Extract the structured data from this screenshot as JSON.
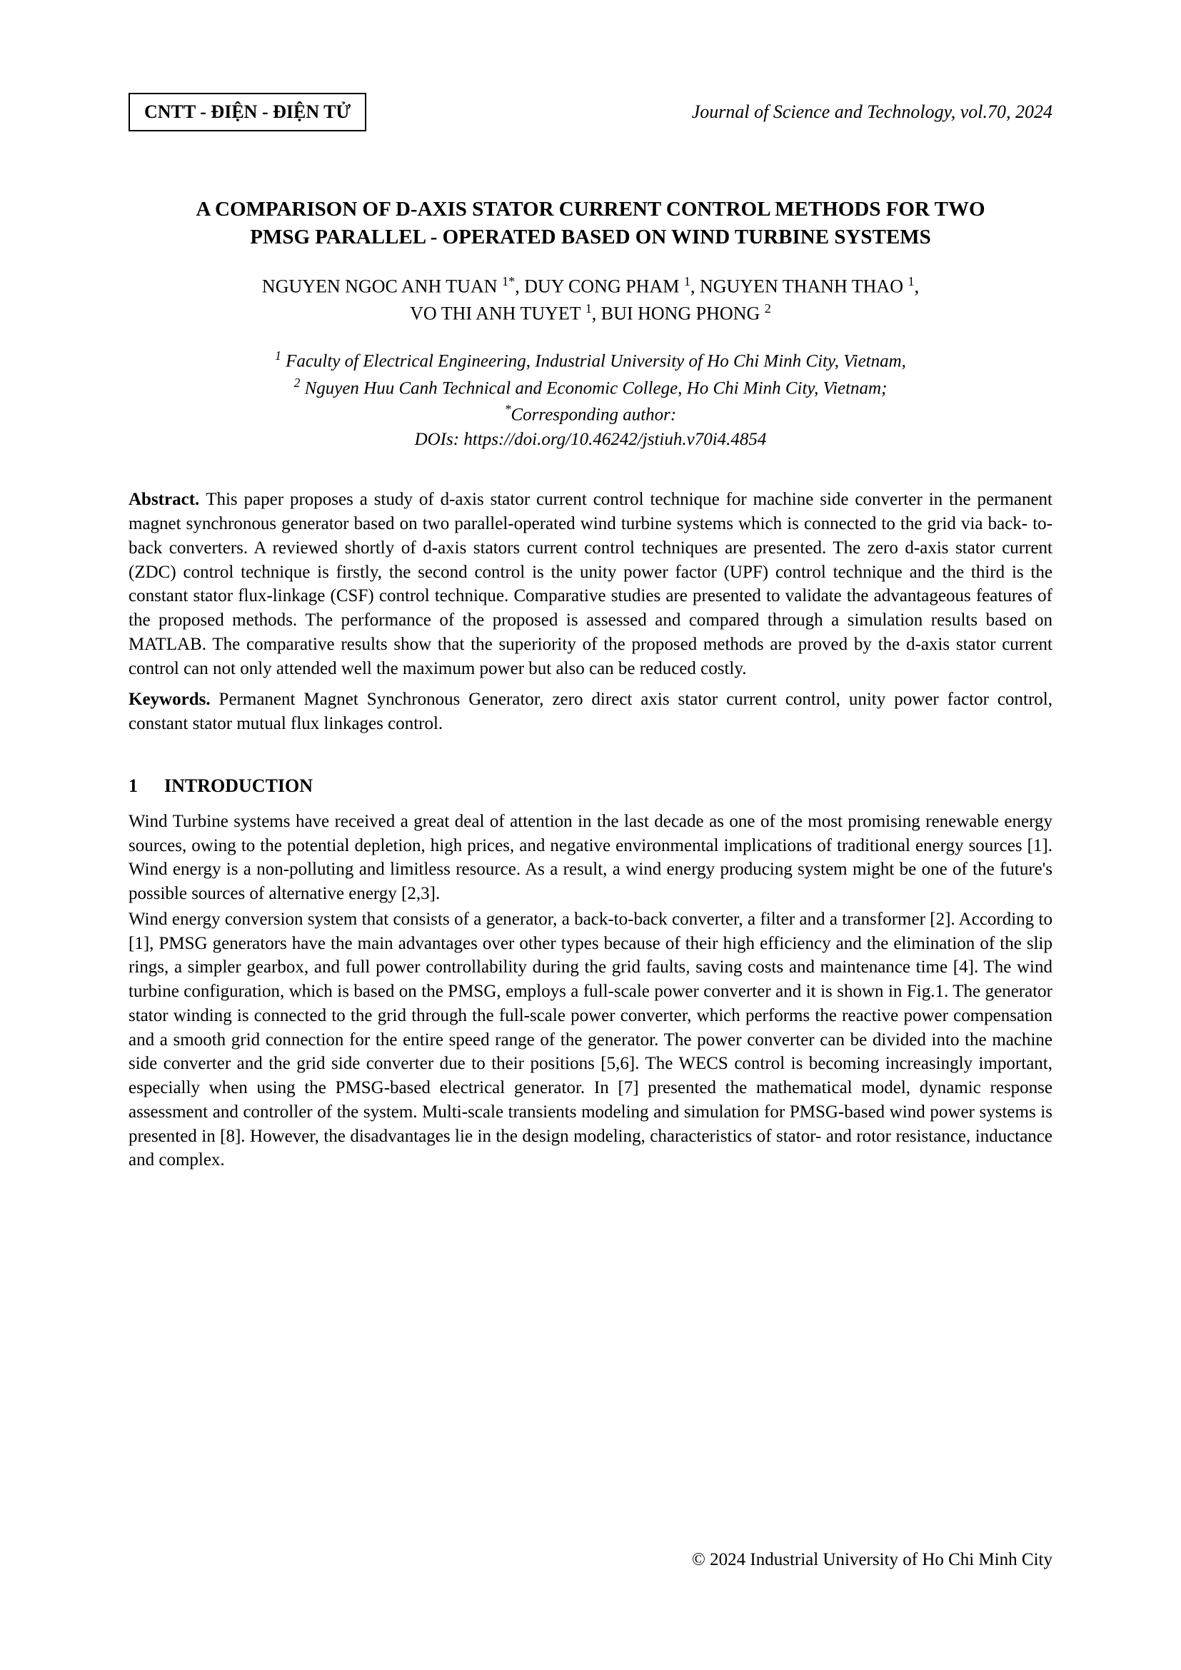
{
  "header": {
    "category": "CNTT - ĐIỆN - ĐIỆN TỬ",
    "journal": "Journal of Science and Technology, vol.70, 2024"
  },
  "title": {
    "line1": "A COMPARISON OF D-AXIS STATOR CURRENT CONTROL METHODS FOR TWO",
    "line2": "PMSG PARALLEL - OPERATED BASED ON WIND TURBINE SYSTEMS"
  },
  "authors": {
    "line1_pre": "NGUYEN NGOC ANH TUAN ",
    "sup1": "1*",
    "a2": ", DUY CONG PHAM ",
    "sup2": "1",
    "a3": ", NGUYEN THANH THAO ",
    "sup3": "1",
    "comma": ",",
    "line2_pre": "VO THI ANH TUYET ",
    "sup4": "1",
    "a5": ", BUI HONG PHONG ",
    "sup5": "2"
  },
  "affiliations": {
    "sup1": "1",
    "aff1": " Faculty of Electrical Engineering, Industrial University of Ho Chi Minh City, Vietnam,",
    "sup2": "2",
    "aff2": " Nguyen Huu Canh Technical and Economic College, Ho Chi Minh City, Vietnam;",
    "corr_sup": "*",
    "corr": "Corresponding author:",
    "doi": "DOIs: https://doi.org/10.46242/jstiuh.v70i4.4854"
  },
  "abstract": {
    "label": "Abstract. ",
    "text": "This paper proposes a study of d-axis stator current control technique for machine side converter in the permanent magnet synchronous generator based on two parallel-operated wind turbine systems which is connected to the grid via back- to-back converters. A reviewed shortly of d-axis stators current control techniques are presented. The zero d-axis stator current (ZDC) control technique is firstly, the second control  is the unity power factor (UPF) control technique and the third is the constant stator flux-linkage (CSF) control technique. Comparative studies are presented to validate the advantageous features of the proposed methods. The performance of the proposed is assessed and compared through a simulation results based on MATLAB. The comparative results show that the superiority of the proposed methods are proved by the d-axis stator current control can not only attended well the maximum power but also can be reduced costly."
  },
  "keywords": {
    "label": "Keywords. ",
    "text": "Permanent Magnet Synchronous Generator, zero direct axis stator current control, unity power factor control, constant stator mutual flux linkages control."
  },
  "section1": {
    "number": "1",
    "title": "INTRODUCTION",
    "para1": "Wind Turbine systems have received a great deal of attention in the last decade as one of the most promising renewable energy sources, owing to the potential depletion, high prices, and negative environmental implications of traditional energy sources [1]. Wind energy is a non-polluting and limitless resource. As a result, a wind energy producing system might be one of the future's possible sources of alternative energy [2,3].",
    "para2": "Wind energy conversion system that consists of a generator, a back-to-back converter, a filter and a transformer [2]. According to [1], PMSG generators have the main advantages over other types because of their high efficiency and the elimination of the slip rings, a simpler gearbox, and full power controllability during the grid faults, saving costs and maintenance time [4]. The wind turbine configuration, which is based on the  PMSG, employs a full-scale power converter and it is shown in Fig.1. The generator stator winding is connected to the grid through the full-scale power converter, which performs the reactive power compensation and a smooth grid connection for the entire speed range of the generator. The power converter can be divided into the machine side converter and the grid side converter due to their positions [5,6]. The WECS control is becoming increasingly important, especially when using the PMSG-based electrical generator. In [7] presented the mathematical model, dynamic response assessment and controller of the system. Multi-scale transients modeling and simulation for PMSG-based wind power systems is presented in [8]. However, the disadvantages lie in the design modeling, characteristics of  stator- and rotor resistance, inductance and complex."
  },
  "footer": {
    "copyright": "© 2024 Industrial University of Ho Chi Minh City"
  }
}
